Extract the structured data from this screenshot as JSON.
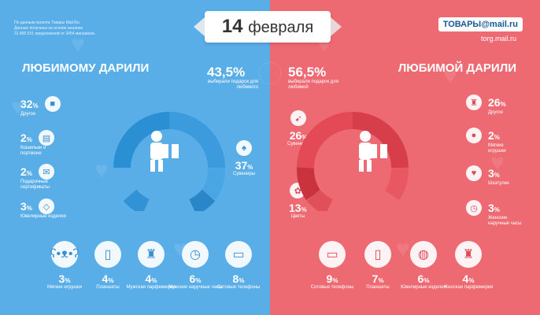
{
  "note": [
    "По данным проекта Товары Mail.Ru.",
    "Данные получены на основе анализа",
    "31 890 531 предложений от  3454 магазинов."
  ],
  "banner": {
    "day": "14",
    "month": "февраля"
  },
  "brand": {
    "name": "ТОВАРЫ@mail.ru",
    "url": "torg.mail.ru"
  },
  "left": {
    "heading": "ЛЮБИМОМУ ДАРИЛИ",
    "share": "43,5",
    "share_note": "выбирали подарок для любимого",
    "items": [
      {
        "value": "32",
        "label": "Другое",
        "icon": "box-icon"
      },
      {
        "value": "2",
        "label": "Кошельки и портмоне",
        "icon": "wallet-icon"
      },
      {
        "value": "2",
        "label": "Подарочные сертификаты",
        "icon": "certificate-icon"
      },
      {
        "value": "3",
        "label": "Ювелирные изделия",
        "icon": "diamond-icon"
      },
      {
        "value": "37",
        "label": "Сувениры",
        "icon": "hookah-icon"
      }
    ],
    "bottom": [
      {
        "value": "3",
        "label": "Мягкие игрушки",
        "icon": "teddy-bear-icon"
      },
      {
        "value": "4",
        "label": "Планшеты",
        "icon": "tablet-icon"
      },
      {
        "value": "4",
        "label": "Мужская парфюмерия",
        "icon": "perfume-icon"
      },
      {
        "value": "6",
        "label": "Мужские наручные часы",
        "icon": "watch-icon"
      },
      {
        "value": "8",
        "label": "Сотовые телефоны",
        "icon": "phone-icon"
      }
    ]
  },
  "right": {
    "heading": "ЛЮБИМОЙ ДАРИЛИ",
    "share": "56,5",
    "share_note": "выбирали подарок для любимой",
    "items": [
      {
        "value": "26",
        "label": "Другое",
        "icon": "shopping-bag-icon"
      },
      {
        "value": "2",
        "label": "Мягкие игрушки",
        "icon": "teddy-bear-icon"
      },
      {
        "value": "3",
        "label": "Шкатулки",
        "icon": "jewelry-box-icon"
      },
      {
        "value": "3",
        "label": "Женские наручные часы",
        "icon": "watch-icon"
      },
      {
        "value": "26",
        "label": "Сувениры",
        "icon": "cupid-icon"
      },
      {
        "value": "13",
        "label": "Цветы",
        "icon": "flowers-icon"
      }
    ],
    "bottom": [
      {
        "value": "9",
        "label": "Сотовые телефоны",
        "icon": "phone-icon"
      },
      {
        "value": "7",
        "label": "Планшеты",
        "icon": "tablet-icon"
      },
      {
        "value": "6",
        "label": "Ювелирные изделия",
        "icon": "ring-icon"
      },
      {
        "value": "4",
        "label": "Женская парфюмерия",
        "icon": "perfume-icon"
      }
    ]
  },
  "percent_sign": "%",
  "colors": {
    "left": "#5aaee8",
    "right": "#ee6a72"
  }
}
